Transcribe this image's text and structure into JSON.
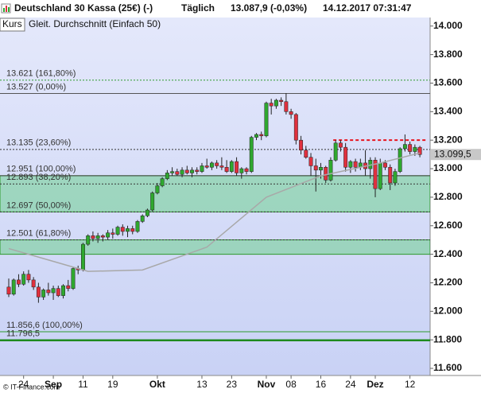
{
  "chart_data": {
    "type": "candlestick",
    "title": "Deutschland 30 Kassa (25€) (-)",
    "interval": "Täglich",
    "quote": "13.087,9 (-0,03%)",
    "timestamp": "14.12.2017 07:31:47",
    "source": "© IT-Finance.com",
    "categories": [
      null,
      null,
      null,
      "24",
      null,
      null,
      null,
      null,
      null,
      "Sep",
      null,
      null,
      null,
      null,
      null,
      "11",
      null,
      null,
      null,
      null,
      null,
      "19",
      null,
      null,
      null,
      null,
      null,
      null,
      null,
      null,
      "Okt",
      null,
      null,
      null,
      null,
      null,
      null,
      null,
      null,
      "13",
      null,
      null,
      null,
      null,
      null,
      "23",
      null,
      null,
      null,
      null,
      null,
      null,
      "Nov",
      null,
      null,
      null,
      null,
      "08",
      null,
      null,
      null,
      null,
      null,
      "16",
      null,
      null,
      null,
      null,
      null,
      "24",
      null,
      null,
      null,
      null,
      "Dez",
      null,
      null,
      null,
      null,
      null,
      null,
      "12",
      null,
      null
    ],
    "series": [
      {
        "name": "Kurs",
        "up_color": "#2fa82f",
        "down_color": "#e0303e",
        "open": [
          12170,
          12120,
          12220,
          12190,
          12260,
          12220,
          12170,
          12100,
          12150,
          12130,
          12160,
          12110,
          12180,
          12160,
          12300,
          12290,
          12470,
          12530,
          12510,
          12530,
          12520,
          12550,
          12540,
          12590,
          12560,
          12580,
          12560,
          12630,
          12670,
          12710,
          12830,
          12880,
          12930,
          12970,
          12980,
          12960,
          12990,
          12970,
          12990,
          12980,
          13020,
          13010,
          13040,
          13020,
          13010,
          12980,
          13050,
          12970,
          13000,
          12980,
          13220,
          13240,
          13230,
          13460,
          13440,
          13480,
          13470,
          13400,
          13380,
          13200,
          13130,
          13080,
          13020,
          12990,
          13010,
          12920,
          13060,
          13180,
          13150,
          13010,
          13050,
          13010,
          13040,
          13000,
          13060,
          12860,
          13040,
          13010,
          12900,
          12980,
          13140,
          13170,
          13120,
          13150
        ],
        "high": [
          12230,
          12230,
          12260,
          12280,
          12290,
          12240,
          12200,
          12160,
          12200,
          12180,
          12180,
          12190,
          12220,
          12310,
          12320,
          12480,
          12540,
          12560,
          12550,
          12540,
          12570,
          12580,
          12600,
          12610,
          12600,
          12600,
          12640,
          12680,
          12720,
          12840,
          12900,
          12940,
          12990,
          13010,
          13000,
          13010,
          13020,
          13010,
          13010,
          13040,
          13070,
          13050,
          13060,
          13080,
          13060,
          13060,
          13080,
          13010,
          13010,
          13230,
          13250,
          13260,
          13470,
          13490,
          13490,
          13500,
          13530,
          13420,
          13390,
          13230,
          13160,
          13110,
          13070,
          13040,
          13020,
          13080,
          13200,
          13200,
          13180,
          13060,
          13070,
          13070,
          13130,
          13080,
          13080,
          13070,
          13060,
          13030,
          13000,
          13150,
          13240,
          13190,
          13170,
          13160
        ],
        "low": [
          12100,
          12110,
          12170,
          12180,
          12200,
          12150,
          12060,
          12080,
          12110,
          12080,
          12100,
          12090,
          12140,
          12150,
          12260,
          12280,
          12460,
          12490,
          12480,
          12490,
          12500,
          12510,
          12530,
          12530,
          12520,
          12540,
          12550,
          12620,
          12660,
          12700,
          12820,
          12870,
          12920,
          12950,
          12950,
          12940,
          12960,
          12940,
          12960,
          12970,
          13000,
          12990,
          13000,
          12990,
          12970,
          12970,
          12950,
          12930,
          12960,
          12970,
          13200,
          13200,
          13220,
          13380,
          13420,
          13440,
          13380,
          13350,
          13170,
          13100,
          13070,
          12950,
          12840,
          12930,
          12900,
          12910,
          13050,
          13120,
          12980,
          12970,
          12980,
          12990,
          12950,
          12930,
          12800,
          12850,
          12990,
          12850,
          12880,
          12970,
          13120,
          13100,
          13090,
          13080
        ],
        "close": [
          12120,
          12220,
          12190,
          12260,
          12220,
          12170,
          12100,
          12150,
          12130,
          12160,
          12110,
          12180,
          12160,
          12300,
          12290,
          12470,
          12530,
          12510,
          12530,
          12520,
          12550,
          12540,
          12590,
          12560,
          12580,
          12560,
          12630,
          12670,
          12710,
          12830,
          12880,
          12930,
          12970,
          12980,
          12960,
          12990,
          12970,
          12990,
          12980,
          13020,
          13010,
          13040,
          13020,
          13010,
          12980,
          13050,
          12970,
          13000,
          12980,
          13220,
          13240,
          13230,
          13460,
          13440,
          13480,
          13470,
          13400,
          13380,
          13200,
          13130,
          13080,
          13020,
          12990,
          13010,
          12920,
          13060,
          13180,
          13150,
          13010,
          13050,
          13010,
          13040,
          13000,
          13060,
          12860,
          13040,
          13010,
          12900,
          12980,
          13140,
          13170,
          13120,
          13150,
          13099.5
        ]
      },
      {
        "name": "Gleit. Durchschnitt (Einfach 50)",
        "color": "#a8a8a8",
        "x": [
          0,
          8,
          16,
          27,
          40,
          52,
          63,
          75,
          83
        ],
        "values": [
          12440,
          12360,
          12280,
          12290,
          12450,
          12800,
          12950,
          13040,
          13110
        ]
      }
    ],
    "last_price": {
      "value": 13099.5,
      "label": "13.099,5"
    },
    "resistance": {
      "value": 13200,
      "from": 66,
      "color": "#e8141e"
    },
    "zones": [
      {
        "from": 12697,
        "to": 12951
      },
      {
        "from": 12400,
        "to": 12501
      }
    ],
    "levels": [
      {
        "value": 13621,
        "label": "13.621 (161,80%)",
        "color": "#2e9a2e",
        "dash": true
      },
      {
        "value": 13527,
        "label": "13.527 (0,00%)",
        "color": "#555555",
        "dash": false
      },
      {
        "value": 13135,
        "label": "13.135 (23,60%)",
        "color": "#333333",
        "dash": true
      },
      {
        "value": 12951,
        "label": "12.951 (100,00%)",
        "color": "#444444",
        "dash": false
      },
      {
        "value": 12893,
        "label": "12.893 (38,20%)",
        "color": "#333333",
        "dash": true
      },
      {
        "value": 12697,
        "label": "12.697 (50,00%)",
        "color": "#333333",
        "dash": true
      },
      {
        "value": 12501,
        "label": "12.501 (61,80%)",
        "color": "#333333",
        "dash": true
      },
      {
        "value": 11856.6,
        "label": "11.856,6 (100,00%)",
        "color": "#2e9a2e",
        "dash": false
      },
      {
        "value": 11796.5,
        "label": "11.796,5",
        "color": "#1e8a1e",
        "dash": false
      }
    ],
    "ylim": [
      11550,
      14060
    ],
    "yticks": [
      {
        "value": 14000,
        "label": "14.000"
      },
      {
        "value": 13800,
        "label": "13.800"
      },
      {
        "value": 13600,
        "label": "13.600"
      },
      {
        "value": 13400,
        "label": "13.400"
      },
      {
        "value": 13200,
        "label": "13.200"
      },
      {
        "value": 13000,
        "label": "13.000"
      },
      {
        "value": 12800,
        "label": "12.800"
      },
      {
        "value": 12600,
        "label": "12.600"
      },
      {
        "value": 12400,
        "label": "12.400"
      },
      {
        "value": 12200,
        "label": "12.200"
      },
      {
        "value": 12000,
        "label": "12.000"
      },
      {
        "value": 11800,
        "label": "11.800"
      },
      {
        "value": 11600,
        "label": "11.600"
      }
    ]
  }
}
